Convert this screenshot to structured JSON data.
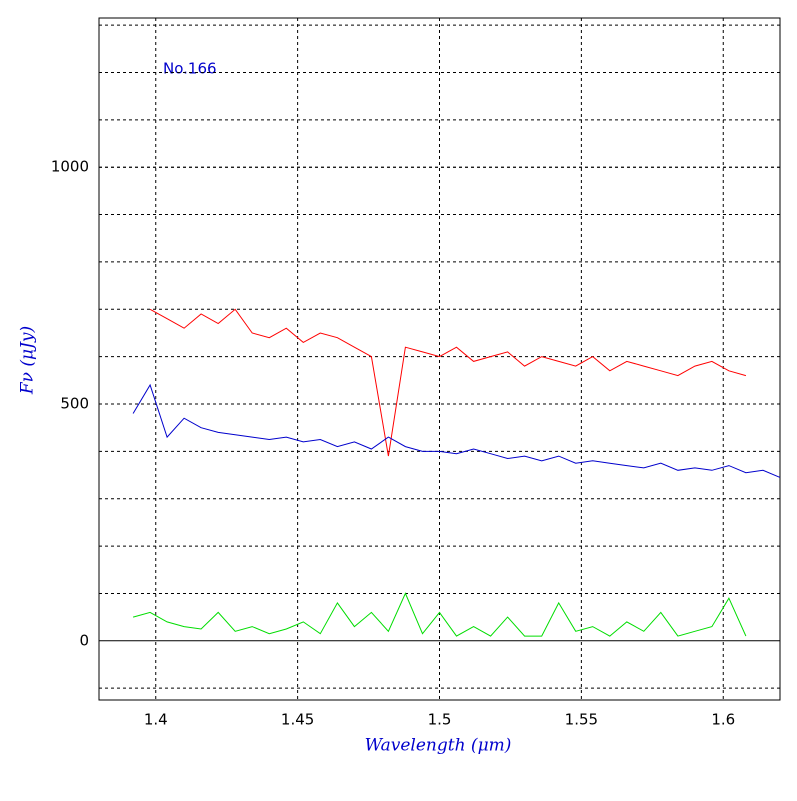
{
  "chart_data": {
    "type": "line",
    "xlabel": "Wavelength (μm)",
    "ylabel": "Fν (μJy)",
    "annotation": "No.166",
    "x": [
      1.392,
      1.398,
      1.404,
      1.41,
      1.416,
      1.422,
      1.428,
      1.434,
      1.44,
      1.446,
      1.452,
      1.458,
      1.464,
      1.47,
      1.476,
      1.482,
      1.488,
      1.494,
      1.5,
      1.506,
      1.512,
      1.518,
      1.524,
      1.53,
      1.536,
      1.542,
      1.548,
      1.554,
      1.56,
      1.566,
      1.572,
      1.578,
      1.584,
      1.59,
      1.596,
      1.602,
      1.608,
      1.614,
      1.62
    ],
    "series": [
      {
        "color": "#ff0000",
        "values": [
          null,
          700,
          680,
          660,
          690,
          670,
          700,
          650,
          640,
          660,
          630,
          650,
          640,
          620,
          600,
          390,
          620,
          610,
          600,
          620,
          590,
          600,
          610,
          580,
          600,
          590,
          580,
          600,
          570,
          590,
          580,
          570,
          560,
          580,
          590,
          570,
          560,
          null,
          null
        ]
      },
      {
        "color": "#0000cc",
        "values": [
          480,
          540,
          430,
          470,
          450,
          440,
          435,
          430,
          425,
          430,
          420,
          425,
          410,
          420,
          405,
          430,
          410,
          400,
          400,
          395,
          405,
          395,
          385,
          390,
          380,
          390,
          375,
          380,
          375,
          370,
          365,
          375,
          360,
          365,
          360,
          370,
          355,
          360,
          345
        ]
      },
      {
        "color": "#00dd00",
        "values": [
          50,
          60,
          40,
          30,
          25,
          60,
          20,
          30,
          15,
          25,
          40,
          15,
          80,
          30,
          60,
          20,
          100,
          15,
          60,
          10,
          30,
          10,
          50,
          10,
          10,
          80,
          20,
          30,
          10,
          40,
          20,
          60,
          10,
          20,
          30,
          90,
          10,
          null,
          null
        ]
      }
    ],
    "xlim": [
      1.38,
      1.62
    ],
    "ylim": [
      -125,
      1315
    ],
    "xticks": [
      1.4,
      1.45,
      1.5,
      1.55,
      1.6
    ],
    "yticks": [
      0,
      500,
      1000
    ],
    "ygrid": [
      -100,
      100,
      200,
      300,
      400,
      500,
      600,
      700,
      800,
      900,
      1000,
      1100,
      1200,
      1300
    ],
    "grid": true
  }
}
